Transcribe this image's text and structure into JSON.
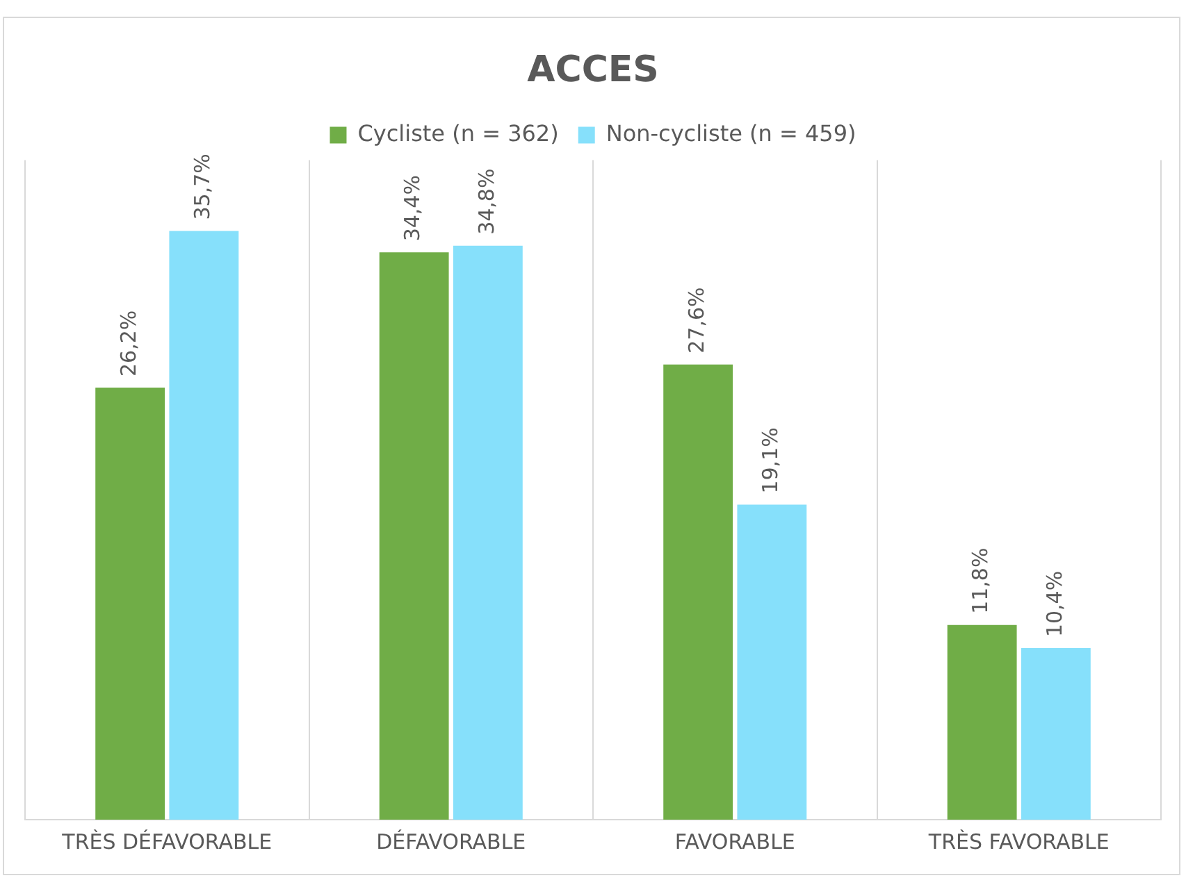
{
  "chart_data": {
    "type": "bar",
    "title": "ACCES",
    "categories": [
      "TRÈS DÉFAVORABLE",
      "DÉFAVORABLE",
      "FAVORABLE",
      "TRÈS FAVORABLE"
    ],
    "series": [
      {
        "name": "Cycliste (n = 362)",
        "color": "#70ad47",
        "values": [
          26.2,
          34.4,
          27.6,
          11.8
        ],
        "value_labels": [
          "26,2%",
          "34,4%",
          "27,6%",
          "11,8%"
        ]
      },
      {
        "name": "Non-cycliste (n = 459)",
        "color": "#86e0fb",
        "values": [
          35.7,
          34.8,
          19.1,
          10.4
        ],
        "value_labels": [
          "35,7%",
          "34,8%",
          "19,1%",
          "10,4%"
        ]
      }
    ],
    "grid": "x",
    "legend": "top",
    "tick_labels": "x"
  }
}
